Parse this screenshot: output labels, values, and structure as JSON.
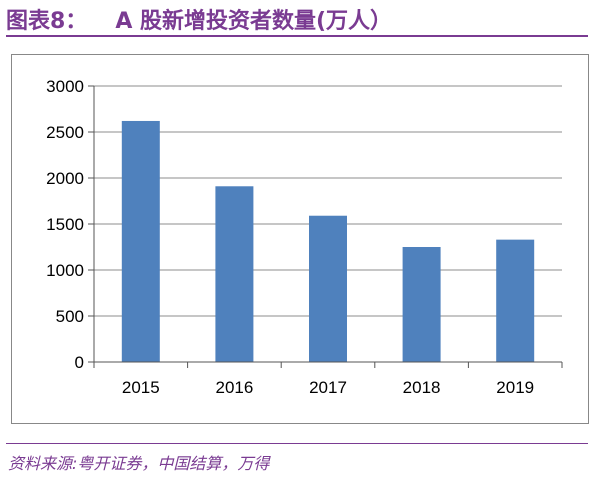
{
  "header": {
    "figure_number": "图表8：",
    "title": "A 股新增投资者数量(万人）"
  },
  "footer": {
    "source": "资料来源:粤开证券，中国结算，万得"
  },
  "colors": {
    "bar": "#4f81bd",
    "accent": "#7a3b92",
    "grid": "#8c8c8c"
  },
  "chart_data": {
    "type": "bar",
    "categories": [
      "2015",
      "2016",
      "2017",
      "2018",
      "2019"
    ],
    "values": [
      2620,
      1910,
      1590,
      1250,
      1330
    ],
    "ylim": [
      0,
      3000
    ],
    "yticks": [
      0,
      500,
      1000,
      1500,
      2000,
      2500,
      3000
    ],
    "grid": true,
    "legend": "none"
  }
}
